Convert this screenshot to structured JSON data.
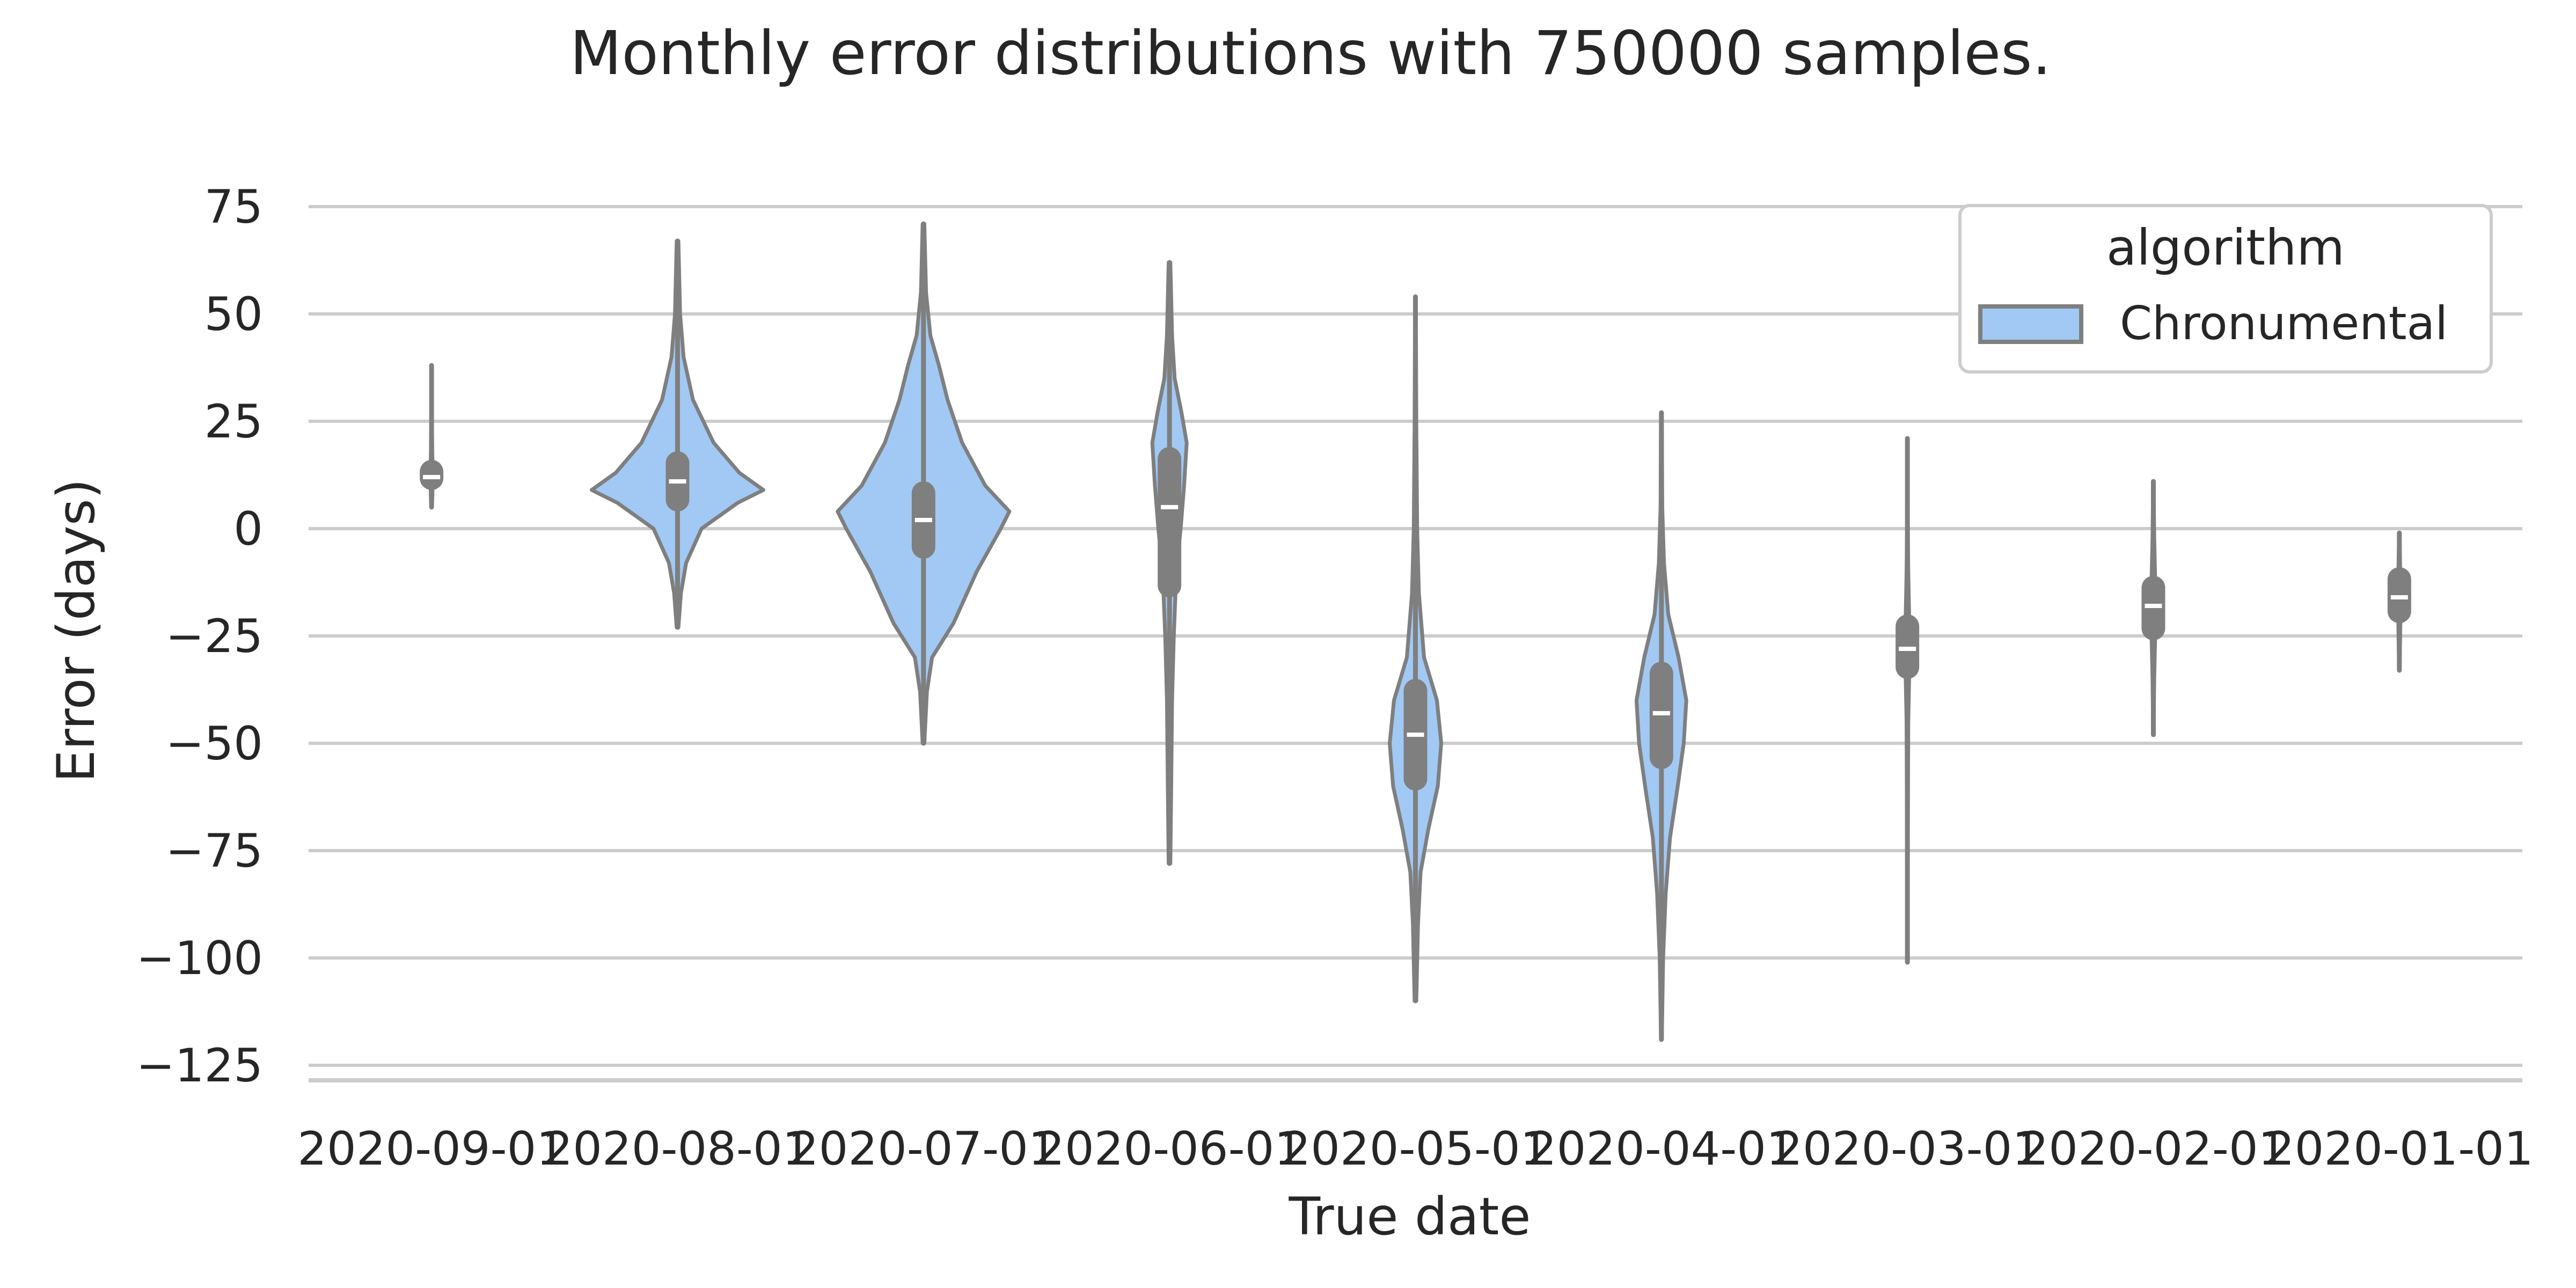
{
  "chart_data": {
    "type": "violin",
    "title": "Monthly error distributions with 750000 samples.",
    "xlabel": "True date",
    "ylabel": "Error (days)",
    "ylim": [
      -130,
      80
    ],
    "yticks": [
      75,
      50,
      25,
      0,
      -25,
      -50,
      -75,
      -100,
      -125
    ],
    "ytick_labels": [
      "75",
      "50",
      "25",
      "0",
      "−25",
      "−50",
      "−75",
      "−100",
      "−125"
    ],
    "grid": true,
    "legend": {
      "title": "algorithm",
      "placement": "top-right",
      "entries": [
        "Chronumental"
      ]
    },
    "colors": {
      "fill": "#a1c9f4",
      "edge": "#7f7f7f",
      "box": "#7f7f7f",
      "median": "#ffffff",
      "grid": "#cccccc",
      "text": "#262626"
    },
    "categories": [
      "2020-09-01",
      "2020-08-01",
      "2020-07-01",
      "2020-06-01",
      "2020-05-01",
      "2020-04-01",
      "2020-03-01",
      "2020-02-01",
      "2020-01-01"
    ],
    "series": [
      {
        "name": "Chronumental",
        "violins": [
          {
            "min": 5,
            "max": 38,
            "q1": 9,
            "median": 12,
            "q3": 16,
            "density": [
              [
                5,
                0.004
              ],
              [
                8,
                0.01
              ],
              [
                12,
                0.012
              ],
              [
                16,
                0.01
              ],
              [
                22,
                0.005
              ],
              [
                30,
                0.003
              ],
              [
                38,
                0.002
              ]
            ]
          },
          {
            "min": -23,
            "max": 67,
            "q1": 4,
            "median": 11,
            "q3": 18,
            "density": [
              [
                -23,
                0.01
              ],
              [
                -15,
                0.04
              ],
              [
                -8,
                0.1
              ],
              [
                0,
                0.28
              ],
              [
                6,
                0.7
              ],
              [
                9,
                1.0
              ],
              [
                13,
                0.72
              ],
              [
                20,
                0.42
              ],
              [
                30,
                0.18
              ],
              [
                40,
                0.07
              ],
              [
                50,
                0.03
              ],
              [
                67,
                0.01
              ]
            ]
          },
          {
            "min": -50,
            "max": 71,
            "q1": -7,
            "median": 2,
            "q3": 11,
            "density": [
              [
                -50,
                0.01
              ],
              [
                -38,
                0.04
              ],
              [
                -30,
                0.1
              ],
              [
                -22,
                0.35
              ],
              [
                -10,
                0.62
              ],
              [
                0,
                0.9
              ],
              [
                4,
                1.0
              ],
              [
                10,
                0.72
              ],
              [
                20,
                0.45
              ],
              [
                30,
                0.28
              ],
              [
                38,
                0.18
              ],
              [
                45,
                0.08
              ],
              [
                55,
                0.03
              ],
              [
                71,
                0.01
              ]
            ]
          },
          {
            "min": -78,
            "max": 62,
            "q1": -16,
            "median": 5,
            "q3": 19,
            "density": [
              [
                -78,
                0.01
              ],
              [
                -60,
                0.02
              ],
              [
                -40,
                0.03
              ],
              [
                -25,
                0.05
              ],
              [
                -10,
                0.08
              ],
              [
                0,
                0.13
              ],
              [
                10,
                0.17
              ],
              [
                20,
                0.2
              ],
              [
                27,
                0.14
              ],
              [
                35,
                0.06
              ],
              [
                45,
                0.03
              ],
              [
                62,
                0.01
              ]
            ]
          },
          {
            "min": -110,
            "max": 54,
            "q1": -61,
            "median": -48,
            "q3": -35,
            "density": [
              [
                -110,
                0.01
              ],
              [
                -92,
                0.03
              ],
              [
                -80,
                0.06
              ],
              [
                -70,
                0.15
              ],
              [
                -60,
                0.26
              ],
              [
                -50,
                0.3
              ],
              [
                -40,
                0.25
              ],
              [
                -30,
                0.1
              ],
              [
                -15,
                0.04
              ],
              [
                0,
                0.02
              ],
              [
                25,
                0.01
              ],
              [
                54,
                0.005
              ]
            ]
          },
          {
            "min": -119,
            "max": 27,
            "q1": -56,
            "median": -43,
            "q3": -31,
            "density": [
              [
                -119,
                0.005
              ],
              [
                -100,
                0.02
              ],
              [
                -85,
                0.05
              ],
              [
                -72,
                0.1
              ],
              [
                -60,
                0.19
              ],
              [
                -50,
                0.26
              ],
              [
                -40,
                0.29
              ],
              [
                -30,
                0.2
              ],
              [
                -20,
                0.08
              ],
              [
                -8,
                0.03
              ],
              [
                5,
                0.01
              ],
              [
                27,
                0.005
              ]
            ]
          },
          {
            "min": -101,
            "max": 21,
            "q1": -35,
            "median": -28,
            "q3": -20,
            "density": [
              [
                -101,
                0.003
              ],
              [
                -70,
                0.005
              ],
              [
                -45,
                0.01
              ],
              [
                -35,
                0.02
              ],
              [
                -28,
                0.025
              ],
              [
                -20,
                0.02
              ],
              [
                -10,
                0.01
              ],
              [
                0,
                0.005
              ],
              [
                21,
                0.003
              ]
            ]
          },
          {
            "min": -48,
            "max": 11,
            "q1": -26,
            "median": -18,
            "q3": -11,
            "density": [
              [
                -48,
                0.003
              ],
              [
                -35,
                0.01
              ],
              [
                -26,
                0.02
              ],
              [
                -18,
                0.025
              ],
              [
                -11,
                0.02
              ],
              [
                -2,
                0.01
              ],
              [
                11,
                0.003
              ]
            ]
          },
          {
            "min": -33,
            "max": -1,
            "q1": -22,
            "median": -16,
            "q3": -9,
            "density": [
              [
                -33,
                0.003
              ],
              [
                -25,
                0.01
              ],
              [
                -16,
                0.015
              ],
              [
                -9,
                0.01
              ],
              [
                -1,
                0.003
              ]
            ]
          }
        ]
      }
    ]
  }
}
